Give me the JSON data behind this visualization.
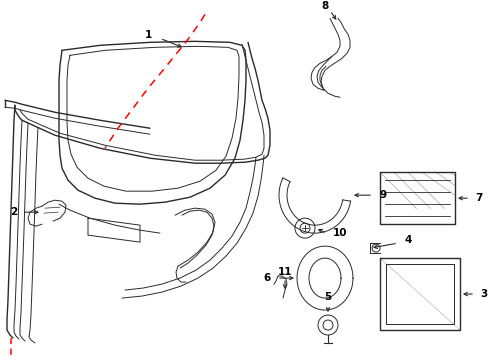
{
  "bg_color": "#ffffff",
  "line_color": "#2a2a2a",
  "red_color": "#ff0000",
  "lw": 1.0,
  "lw_thin": 0.7,
  "figsize": [
    4.89,
    3.6
  ],
  "dpi": 100
}
